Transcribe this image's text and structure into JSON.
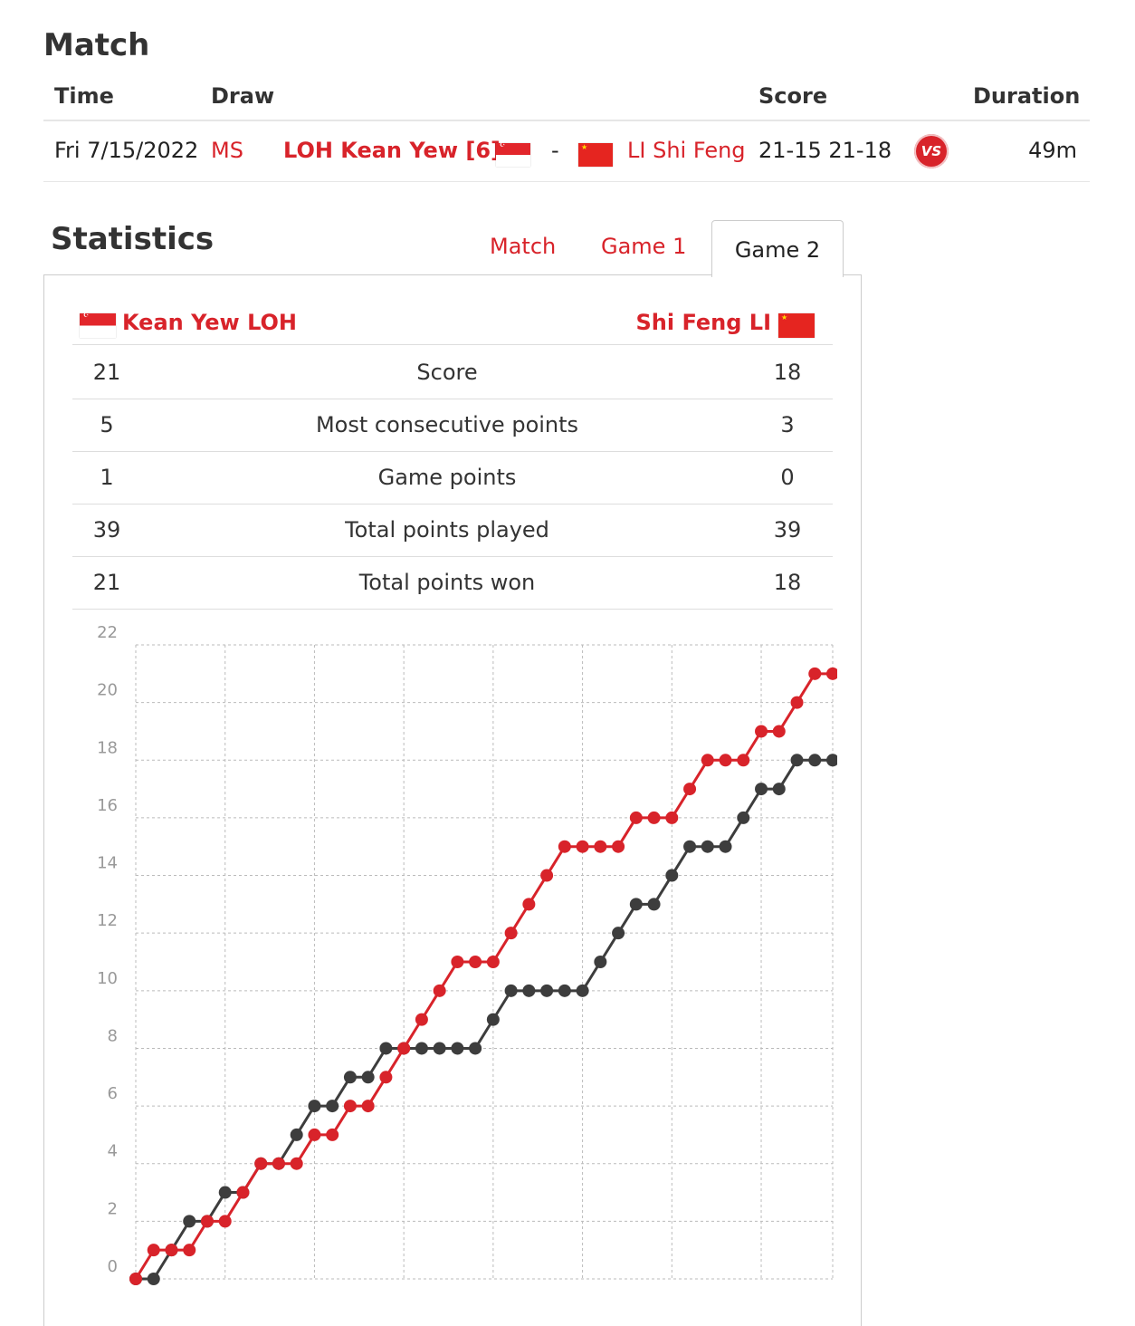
{
  "match": {
    "title": "Match",
    "headers": {
      "time": "Time",
      "draw": "Draw",
      "score": "Score",
      "duration": "Duration"
    },
    "row": {
      "date": "Fri 7/15/2022",
      "draw": "MS",
      "player1": "LOH Kean Yew [6]",
      "separator": "-",
      "player2": "LI Shi Feng",
      "score": "21-15 21-18",
      "vs": "VS",
      "duration": "49m"
    }
  },
  "statistics": {
    "title": "Statistics",
    "tabs": [
      "Match",
      "Game 1",
      "Game 2"
    ],
    "active_tab": "Game 2",
    "player_left": "Kean Yew LOH",
    "player_right": "Shi Feng LI",
    "rows": [
      {
        "left": "21",
        "label": "Score",
        "right": "18"
      },
      {
        "left": "5",
        "label": "Most consecutive points",
        "right": "3"
      },
      {
        "left": "1",
        "label": "Game points",
        "right": "0"
      },
      {
        "left": "39",
        "label": "Total points played",
        "right": "39"
      },
      {
        "left": "21",
        "label": "Total points won",
        "right": "18"
      }
    ]
  },
  "colors": {
    "accent": "#d8232a",
    "series_dark": "#3d3d3d",
    "grid": "#bbbbbb"
  },
  "chart_data": {
    "type": "line",
    "ylim": [
      0,
      22
    ],
    "yticks": [
      "22",
      "20",
      "18",
      "16",
      "14",
      "12",
      "10",
      "8",
      "6",
      "4",
      "2",
      "0"
    ],
    "x_count": 40,
    "series": [
      {
        "color": "#d8232a",
        "values": [
          0,
          1,
          1,
          1,
          2,
          2,
          3,
          4,
          4,
          4,
          5,
          5,
          6,
          6,
          7,
          8,
          9,
          10,
          11,
          11,
          11,
          12,
          13,
          14,
          15,
          15,
          15,
          15,
          16,
          16,
          16,
          17,
          18,
          18,
          18,
          19,
          19,
          20,
          21,
          21
        ]
      },
      {
        "color": "#3d3d3d",
        "values": [
          0,
          0,
          1,
          2,
          2,
          3,
          3,
          4,
          4,
          5,
          6,
          6,
          7,
          7,
          8,
          8,
          8,
          8,
          8,
          8,
          9,
          10,
          10,
          10,
          10,
          10,
          11,
          12,
          13,
          13,
          14,
          15,
          15,
          15,
          16,
          17,
          17,
          18,
          18,
          18
        ]
      }
    ]
  }
}
